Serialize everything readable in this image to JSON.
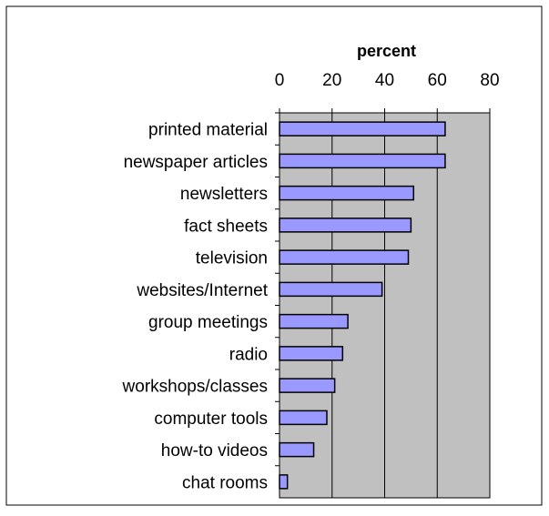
{
  "chart_data": {
    "type": "bar",
    "orientation": "horizontal",
    "title": "percent",
    "xlabel": "percent",
    "ylabel": "",
    "xlim": [
      0,
      80
    ],
    "x_ticks": [
      "0",
      "20",
      "40",
      "60",
      "80"
    ],
    "x_tick_values": [
      0,
      20,
      40,
      60,
      80
    ],
    "axis_position": "top",
    "grid": true,
    "legend": "none",
    "categories": [
      "printed material",
      "newspaper articles",
      "newsletters",
      "fact sheets",
      "television",
      "websites/Internet",
      "group meetings",
      "radio",
      "workshops/classes",
      "computer tools",
      "how-to videos",
      "chat rooms"
    ],
    "values": [
      63,
      63,
      51,
      50,
      49,
      39,
      26,
      24,
      21,
      18,
      13,
      3
    ],
    "colors": {
      "bar_fill": "#9999ff",
      "bar_stroke": "#000000",
      "plot_background": "#c0c0c0",
      "gridline": "#000000",
      "text": "#000000"
    }
  }
}
